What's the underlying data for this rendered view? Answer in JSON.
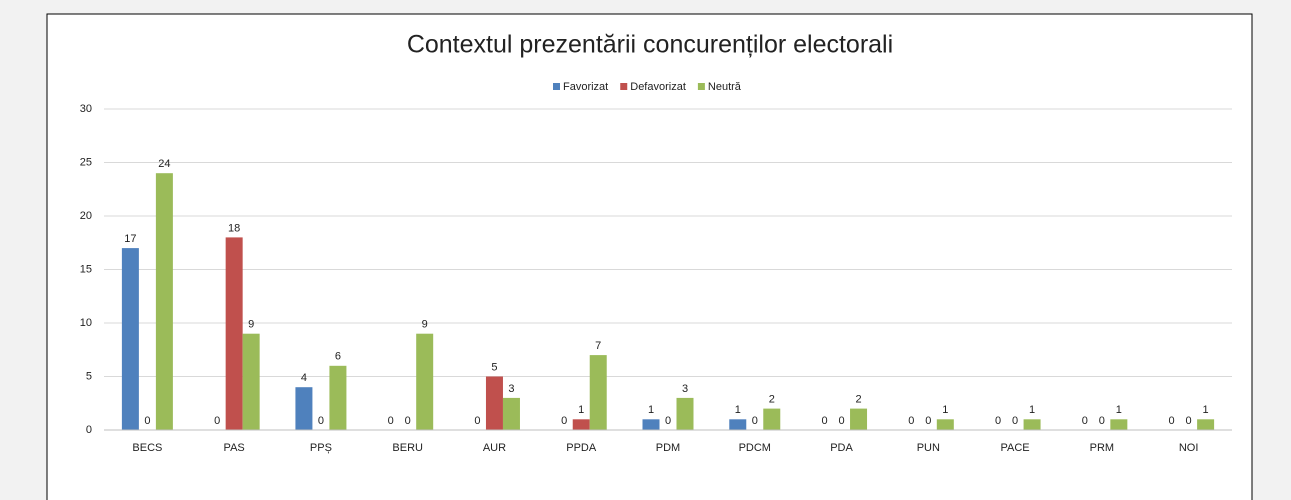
{
  "chart_data": {
    "type": "bar",
    "title": "Contextul prezentării concurenților electorali",
    "categories": [
      "BECS",
      "PAS",
      "PPȘ",
      "BERU",
      "AUR",
      "PPDA",
      "PDM",
      "PDCM",
      "PDA",
      "PUN",
      "PACE",
      "PRM",
      "NOI"
    ],
    "series": [
      {
        "name": "Favorizat",
        "color": "#4f81bd",
        "values": [
          17,
          0,
          4,
          0,
          0,
          0,
          1,
          1,
          0,
          0,
          0,
          0,
          0
        ]
      },
      {
        "name": "Defavorizat",
        "color": "#c0504d",
        "values": [
          0,
          18,
          0,
          0,
          5,
          1,
          0,
          0,
          0,
          0,
          0,
          0,
          0
        ]
      },
      {
        "name": "Neutră",
        "color": "#9bbb59",
        "values": [
          24,
          9,
          6,
          9,
          3,
          7,
          3,
          2,
          2,
          1,
          1,
          1,
          1
        ]
      }
    ],
    "ylim": [
      0,
      30
    ],
    "yticks": [
      0,
      5,
      10,
      15,
      20,
      25,
      30
    ],
    "grid": true,
    "legend": "top"
  }
}
